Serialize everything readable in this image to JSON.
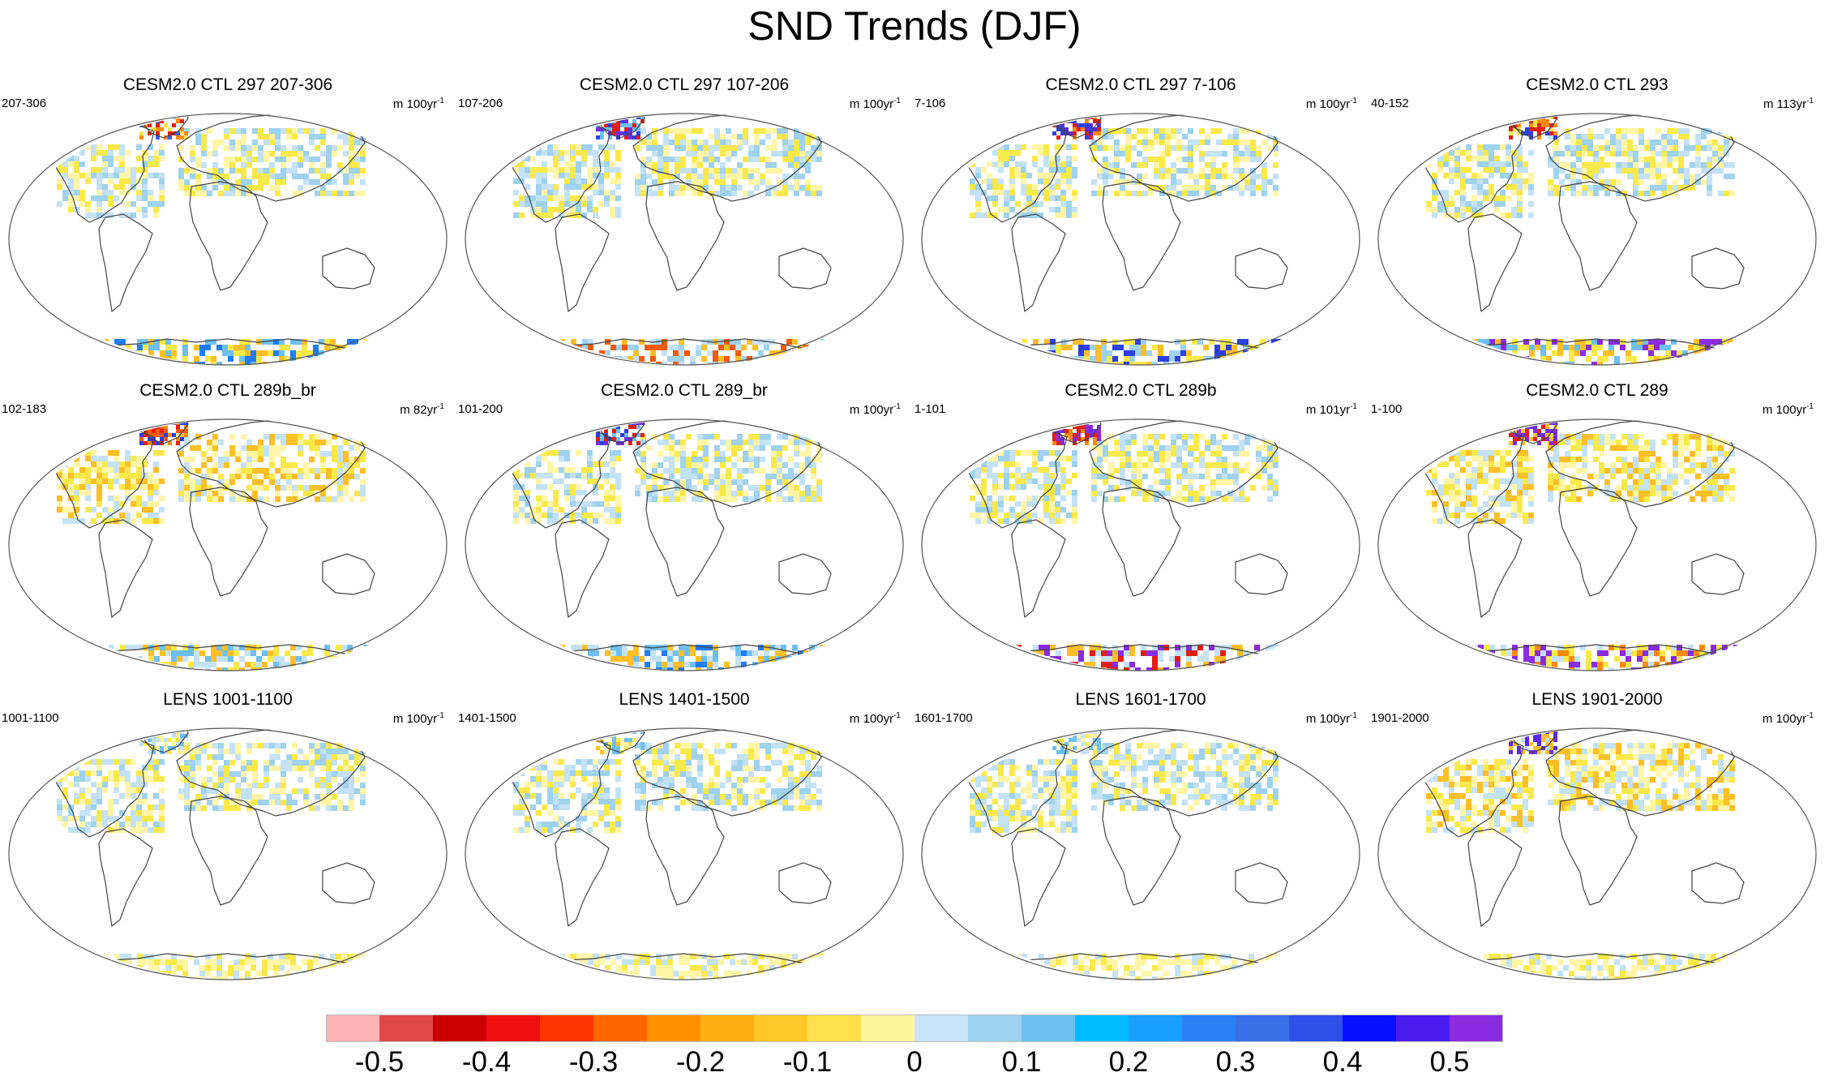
{
  "title": "SND Trends (DJF)",
  "panels": [
    {
      "title": "CESM2.0 CTL 297 207-306",
      "years": "207-306",
      "units_prefix": "m 100yr",
      "units_exp": "-1",
      "patterns": {
        "north": [
          "#f8e94a",
          "#c4e2f5",
          "#fff5a6",
          "#9fd2ee"
        ],
        "greenland": [
          "#e51d10",
          "#3d5ff0",
          "#fd8a0b",
          "#f8e94a"
        ],
        "antarctica": [
          "#fdbf26",
          "#6ec0f2",
          "#f8e94a",
          "#1f7df7"
        ]
      }
    },
    {
      "title": "CESM2.0 CTL 297 107-206",
      "years": "107-206",
      "units_prefix": "m 100yr",
      "units_exp": "-1",
      "patterns": {
        "north": [
          "#c4e2f5",
          "#f8e94a",
          "#fff5a6",
          "#9fd2ee"
        ],
        "greenland": [
          "#2b3fe2",
          "#6e2dea",
          "#e51d10",
          "#6ec0f2"
        ],
        "antarctica": [
          "#f25a0a",
          "#c4e2f5",
          "#fdbf26",
          "#9fd2ee"
        ]
      }
    },
    {
      "title": "CESM2.0 CTL 297 7-106",
      "years": "7-106",
      "units_prefix": "m 100yr",
      "units_exp": "-1",
      "patterns": {
        "north": [
          "#c4e2f5",
          "#fff5a6",
          "#f8e94a",
          "#9fd2ee"
        ],
        "greenland": [
          "#5a2be6",
          "#e51d10",
          "#2b3fe2",
          "#fd8a0b"
        ],
        "antarctica": [
          "#fdbf26",
          "#f8e94a",
          "#2b3fe2",
          "#9fd2ee"
        ]
      }
    },
    {
      "title": "CESM2.0 CTL 293",
      "years": "40-152",
      "units_prefix": "m 113yr",
      "units_exp": "-1",
      "patterns": {
        "north": [
          "#fff5a6",
          "#c4e2f5",
          "#f8e94a",
          "#9fd2ee"
        ],
        "greenland": [
          "#e51d10",
          "#fd8a0b",
          "#2b3fe2",
          "#f8e94a"
        ],
        "antarctica": [
          "#8a2be2",
          "#fdbf26",
          "#f8e94a",
          "#6ec0f2"
        ]
      }
    },
    {
      "title": "CESM2.0 CTL 289b_br",
      "years": "102-183",
      "units_prefix": "m 82yr",
      "units_exp": "-1",
      "patterns": {
        "north": [
          "#f8e94a",
          "#fff5a6",
          "#c4e2f5",
          "#fdbf26"
        ],
        "greenland": [
          "#fd8a0b",
          "#e51d10",
          "#f25a0a",
          "#2b3fe2"
        ],
        "antarctica": [
          "#f8e94a",
          "#fdbf26",
          "#6ec0f2",
          "#c4e2f5"
        ]
      }
    },
    {
      "title": "CESM2.0 CTL 289_br",
      "years": "101-200",
      "units_prefix": "m 100yr",
      "units_exp": "-1",
      "patterns": {
        "north": [
          "#fff5a6",
          "#c4e2f5",
          "#f8e94a",
          "#9fd2ee"
        ],
        "greenland": [
          "#2b3fe2",
          "#e51d10",
          "#6e2dea",
          "#6ec0f2"
        ],
        "antarctica": [
          "#6ec0f2",
          "#fdbf26",
          "#c4e2f5",
          "#1f7df7"
        ]
      }
    },
    {
      "title": "CESM2.0 CTL 289b",
      "years": "1-101",
      "units_prefix": "m 101yr",
      "units_exp": "-1",
      "patterns": {
        "north": [
          "#c4e2f5",
          "#fff5a6",
          "#f8e94a",
          "#9fd2ee"
        ],
        "greenland": [
          "#8a2be2",
          "#6e2dea",
          "#e51d10",
          "#fd8a0b"
        ],
        "antarctica": [
          "#8a2be2",
          "#c4e2f5",
          "#fdbf26",
          "#e51d10"
        ]
      }
    },
    {
      "title": "CESM2.0 CTL 289",
      "years": "1-100",
      "units_prefix": "m 100yr",
      "units_exp": "-1",
      "patterns": {
        "north": [
          "#c4e2f5",
          "#f8e94a",
          "#fff5a6",
          "#fdbf26"
        ],
        "greenland": [
          "#8a2be2",
          "#e51d10",
          "#6e2dea",
          "#fdbf26"
        ],
        "antarctica": [
          "#8a2be2",
          "#fd8a0b",
          "#f8e94a",
          "#c4e2f5"
        ]
      }
    },
    {
      "title": "LENS 1001-1100",
      "years": "1001-1100",
      "units_prefix": "m 100yr",
      "units_exp": "-1",
      "patterns": {
        "north": [
          "#c4e2f5",
          "#fff5a6",
          "#9fd2ee",
          "#f8e94a"
        ],
        "greenland": [
          "#fff5a6",
          "#c4e2f5",
          "#f8e94a",
          "#6ec0f2"
        ],
        "antarctica": [
          "#fff5a6",
          "#c4e2f5",
          "#f8e94a",
          "#fff5a6"
        ]
      }
    },
    {
      "title": "LENS 1401-1500",
      "years": "1401-1500",
      "units_prefix": "m 100yr",
      "units_exp": "-1",
      "patterns": {
        "north": [
          "#fff5a6",
          "#c4e2f5",
          "#f8e94a",
          "#9fd2ee"
        ],
        "greenland": [
          "#fff5a6",
          "#f8e94a",
          "#6ec0f2",
          "#fdbf26"
        ],
        "antarctica": [
          "#fff5a6",
          "#c4e2f5",
          "#f8e94a",
          "#fff5a6"
        ]
      }
    },
    {
      "title": "LENS 1601-1700",
      "years": "1601-1700",
      "units_prefix": "m 100yr",
      "units_exp": "-1",
      "patterns": {
        "north": [
          "#c4e2f5",
          "#fff5a6",
          "#f8e94a",
          "#9fd2ee"
        ],
        "greenland": [
          "#c4e2f5",
          "#fff5a6",
          "#6ec0f2",
          "#f8e94a"
        ],
        "antarctica": [
          "#fff5a6",
          "#c4e2f5",
          "#f8e94a",
          "#fff5a6"
        ]
      }
    },
    {
      "title": "LENS 1901-2000",
      "years": "1901-2000",
      "units_prefix": "m 100yr",
      "units_exp": "-1",
      "patterns": {
        "north": [
          "#f8e94a",
          "#fff5a6",
          "#c4e2f5",
          "#fdbf26"
        ],
        "greenland": [
          "#5a2be6",
          "#6e2dea",
          "#fdbf26",
          "#c4e2f5"
        ],
        "antarctica": [
          "#fff5a6",
          "#c4e2f5",
          "#f8e94a",
          "#fff5a6"
        ]
      }
    }
  ],
  "colorbar": {
    "colors": [
      "#fbb4b4",
      "#e04848",
      "#cc0000",
      "#f01010",
      "#ff3300",
      "#ff6600",
      "#ff9100",
      "#ffae12",
      "#ffc828",
      "#ffe04a",
      "#fff59a",
      "#c8e4f6",
      "#9fd2ee",
      "#6ec0f2",
      "#00bcff",
      "#1aa0ff",
      "#2b80f5",
      "#3a6ee6",
      "#2f50e8",
      "#0a10ff",
      "#4b1cf0",
      "#8a2be2"
    ],
    "labels": [
      "-0.5",
      "-0.4",
      "-0.3",
      "-0.2",
      "-0.1",
      "0",
      "0.1",
      "0.2",
      "0.3",
      "0.4",
      "0.5"
    ]
  }
}
